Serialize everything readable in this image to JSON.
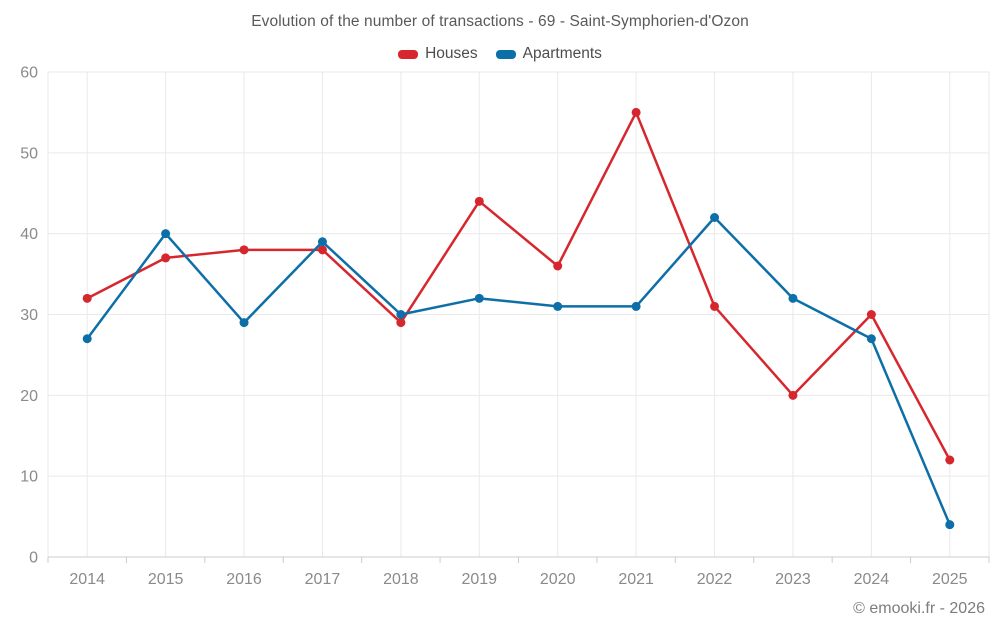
{
  "header": {
    "title": "Evolution of the number of transactions - 69 - Saint-Symphorien-d'Ozon"
  },
  "legend": {
    "items": [
      {
        "label": "Houses",
        "color": "#d7272e"
      },
      {
        "label": "Apartments",
        "color": "#0d6fa8"
      }
    ]
  },
  "footer": {
    "credit": "© emooki.fr - 2026"
  },
  "colors": {
    "houses": "#d7272e",
    "apartments": "#0d6fa8",
    "grid": "#e9e9e9",
    "axis": "#cccccc",
    "axis_label": "#8a8a8a"
  },
  "chart_data": {
    "type": "line",
    "title": "Evolution of the number of transactions - 69 - Saint-Symphorien-d'Ozon",
    "categories": [
      "2014",
      "2015",
      "2016",
      "2017",
      "2018",
      "2019",
      "2020",
      "2021",
      "2022",
      "2023",
      "2024",
      "2025"
    ],
    "series": [
      {
        "name": "Houses",
        "color": "#d7272e",
        "values": [
          32,
          37,
          38,
          38,
          29,
          44,
          36,
          55,
          31,
          20,
          30,
          12
        ]
      },
      {
        "name": "Apartments",
        "color": "#0d6fa8",
        "values": [
          27,
          40,
          29,
          39,
          30,
          32,
          31,
          31,
          42,
          32,
          27,
          4
        ]
      }
    ],
    "xlabel": "",
    "ylabel": "",
    "ylim": [
      0,
      60
    ],
    "yticks": [
      0,
      10,
      20,
      30,
      40,
      50,
      60
    ],
    "grid": true,
    "legend_position": "top",
    "markers": true
  }
}
